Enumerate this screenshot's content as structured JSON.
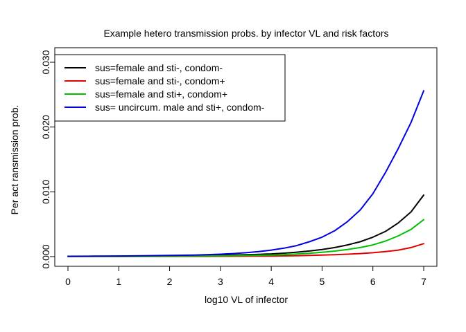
{
  "chart_data": {
    "type": "line",
    "title": "Example hetero transmission probs. by infector VL and risk factors",
    "xlabel": "log10 VL of infector",
    "ylabel": "Per act ransmission prob.",
    "xlim": [
      0,
      7
    ],
    "ylim": [
      0,
      0.03
    ],
    "x_ticks": [
      "0",
      "1",
      "2",
      "3",
      "4",
      "5",
      "6",
      "7"
    ],
    "y_ticks": [
      "0.000",
      "0.010",
      "0.020",
      "0.030"
    ],
    "grid": false,
    "legend_position": "top-left",
    "x": [
      0,
      0.5,
      1,
      1.5,
      2,
      2.5,
      3,
      3.25,
      3.5,
      3.75,
      4,
      4.25,
      4.5,
      4.75,
      5,
      5.25,
      5.5,
      5.75,
      6,
      6.25,
      6.5,
      6.75,
      7
    ],
    "series": [
      {
        "name": "sus=female and sti-, condom-",
        "color": "#000000",
        "values": [
          3e-05,
          4e-05,
          6e-05,
          8e-05,
          0.0001,
          0.00014,
          0.0002,
          0.00024,
          0.00029,
          0.00035,
          0.00042,
          0.00053,
          0.00068,
          0.00087,
          0.0011,
          0.0014,
          0.0018,
          0.0023,
          0.003,
          0.0039,
          0.0052,
          0.0069,
          0.0095
        ]
      },
      {
        "name": "sus=female and sti-, condom+",
        "color": "#e00000",
        "values": [
          1e-05,
          1e-05,
          1e-05,
          2e-05,
          2e-05,
          3e-05,
          4e-05,
          5e-05,
          6e-05,
          7e-05,
          9e-05,
          0.00011,
          0.00014,
          0.00018,
          0.00023,
          0.00029,
          0.00037,
          0.00047,
          0.0006,
          0.00078,
          0.001,
          0.0014,
          0.002
        ]
      },
      {
        "name": "sus=female and sti+, condom+",
        "color": "#00c000",
        "values": [
          2e-05,
          2e-05,
          3e-05,
          4e-05,
          6e-05,
          8e-05,
          0.00011,
          0.00014,
          0.00017,
          0.0002,
          0.00025,
          0.00031,
          0.0004,
          0.00051,
          0.00066,
          0.00085,
          0.0011,
          0.0014,
          0.0018,
          0.0024,
          0.0032,
          0.0042,
          0.0057
        ]
      },
      {
        "name": "sus= uncircum. male and sti+, condom-",
        "color": "#0000e0",
        "values": [
          5e-05,
          7e-05,
          0.0001,
          0.00013,
          0.00018,
          0.00025,
          0.00037,
          0.00047,
          0.0006,
          0.00077,
          0.001,
          0.0013,
          0.0017,
          0.0023,
          0.003,
          0.004,
          0.0054,
          0.0072,
          0.0097,
          0.013,
          0.0167,
          0.0207,
          0.0256
        ]
      }
    ]
  }
}
